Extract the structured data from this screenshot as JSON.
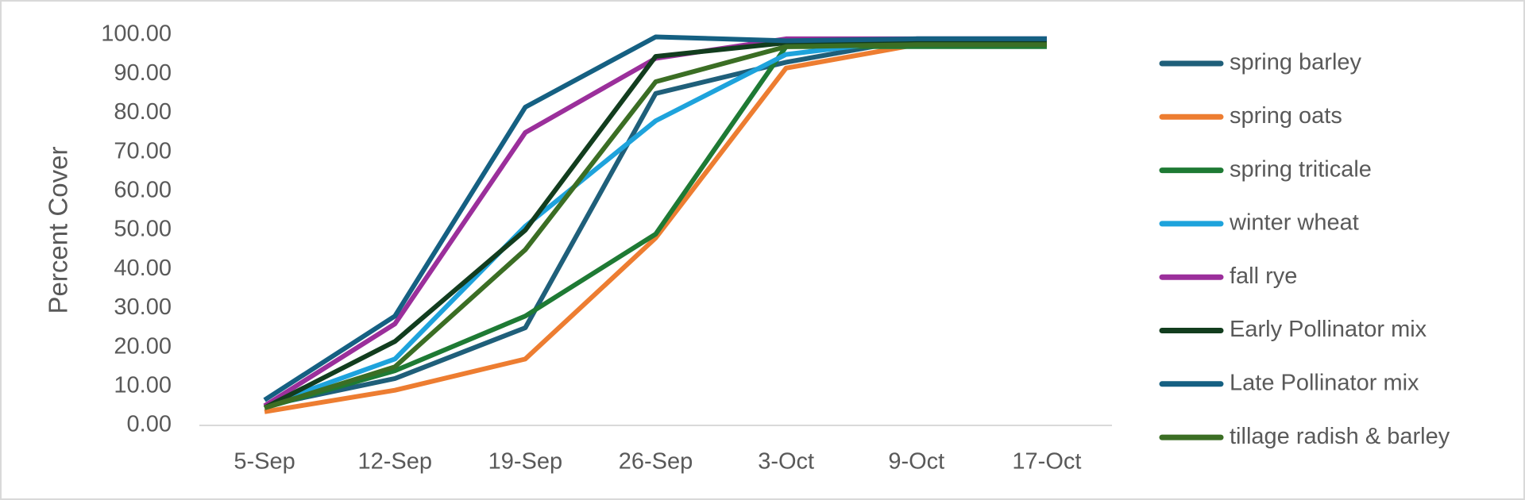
{
  "chart_data": {
    "type": "line",
    "y_label": "Percent Cover",
    "categories": [
      "5-Sep",
      "12-Sep",
      "19-Sep",
      "26-Sep",
      "3-Oct",
      "9-Oct",
      "17-Oct"
    ],
    "ylim": [
      0,
      100
    ],
    "yticks": [
      {
        "value": 0,
        "label": "0.00"
      },
      {
        "value": 10,
        "label": "10.00"
      },
      {
        "value": 20,
        "label": "20.00"
      },
      {
        "value": 30,
        "label": "30.00"
      },
      {
        "value": 40,
        "label": "40.00"
      },
      {
        "value": 50,
        "label": "50.00"
      },
      {
        "value": 60,
        "label": "60.00"
      },
      {
        "value": 70,
        "label": "70.00"
      },
      {
        "value": 80,
        "label": "80.00"
      },
      {
        "value": 90,
        "label": "90.00"
      },
      {
        "value": 100,
        "label": "100.00"
      }
    ],
    "grid": false,
    "legend": "right",
    "series": [
      {
        "name": "spring barley",
        "color": "#1f5f7a",
        "values": [
          5,
          12,
          25,
          85,
          93,
          99,
          99
        ]
      },
      {
        "name": "spring oats",
        "color": "#ed7d31",
        "values": [
          3.5,
          9,
          17,
          48,
          91.5,
          97.5,
          97.5
        ]
      },
      {
        "name": "spring triticale",
        "color": "#1e7a34",
        "values": [
          4.5,
          14,
          28,
          49,
          97,
          97,
          97
        ]
      },
      {
        "name": "winter wheat",
        "color": "#1ea3dc",
        "values": [
          5,
          17,
          51,
          78,
          95,
          99,
          99
        ]
      },
      {
        "name": "fall rye",
        "color": "#9b2f9b",
        "values": [
          5,
          26,
          75,
          94,
          99,
          99,
          99
        ]
      },
      {
        "name": "Early Pollinator mix",
        "color": "#123d1e",
        "values": [
          4.5,
          21.5,
          50,
          94.5,
          98,
          98,
          98
        ]
      },
      {
        "name": "Late Pollinator mix",
        "color": "#156082",
        "values": [
          6.5,
          28,
          81.5,
          99.5,
          98.5,
          99,
          99
        ]
      },
      {
        "name": "tillage radish & barley",
        "color": "#3b6e24",
        "values": [
          4.5,
          15,
          45,
          88,
          97,
          97.5,
          97.5
        ]
      }
    ]
  }
}
